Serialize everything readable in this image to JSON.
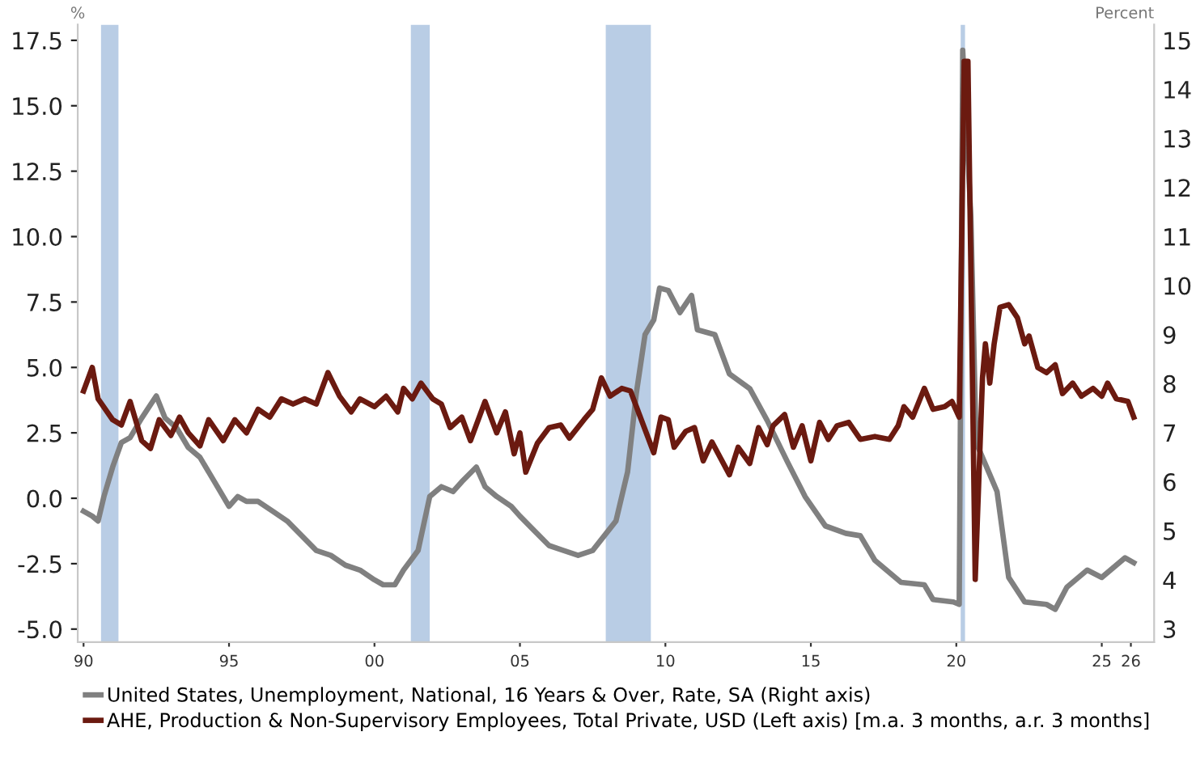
{
  "chart_data": {
    "type": "line",
    "ylabel": "%",
    "y2label": "Percent",
    "xlim": [
      1989.8,
      2026.8
    ],
    "xticks": [
      {
        "value": 1990,
        "label": "90"
      },
      {
        "value": 1995,
        "label": "95"
      },
      {
        "value": 2000,
        "label": "00"
      },
      {
        "value": 2005,
        "label": "05"
      },
      {
        "value": 2010,
        "label": "10"
      },
      {
        "value": 2015,
        "label": "15"
      },
      {
        "value": 2020,
        "label": "20"
      },
      {
        "value": 2025,
        "label": "25"
      },
      {
        "value": 2026,
        "label": "26"
      }
    ],
    "ylim": [
      -5.5,
      18.1
    ],
    "yticks": [
      {
        "value": -5,
        "label": "-5.0"
      },
      {
        "value": -2.5,
        "label": "-2.5"
      },
      {
        "value": 0,
        "label": "0.0"
      },
      {
        "value": 2.5,
        "label": "2.5"
      },
      {
        "value": 5,
        "label": "5.0"
      },
      {
        "value": 7.5,
        "label": "7.5"
      },
      {
        "value": 10,
        "label": "10.0"
      },
      {
        "value": 12.5,
        "label": "12.5"
      },
      {
        "value": 15,
        "label": "15.0"
      },
      {
        "value": 17.5,
        "label": "17.5"
      }
    ],
    "y2lim": [
      2.73,
      15.32
    ],
    "y2ticks": [
      3,
      4,
      5,
      6,
      7,
      8,
      9,
      10,
      11,
      12,
      13,
      14,
      15
    ],
    "grid": false,
    "legend": "bottom",
    "marker": "none",
    "line_style": "solid",
    "bands": [
      {
        "axis": "x",
        "from": 1990.6,
        "to": 1991.2,
        "color": "#b9cde5"
      },
      {
        "axis": "x",
        "from": 2001.25,
        "to": 2001.9,
        "color": "#b9cde5"
      },
      {
        "axis": "x",
        "from": 2007.95,
        "to": 2009.5,
        "color": "#b9cde5"
      },
      {
        "axis": "x",
        "from": 2020.15,
        "to": 2020.3,
        "color": "#b9cde5"
      }
    ],
    "series": [
      {
        "name": "United States, Unemployment, National, 16 Years & Over, Rate, SA (Right axis)",
        "color": "#808080",
        "axis": "y2",
        "x": [
          1990.0,
          1990.3,
          1990.5,
          1990.7,
          1991.0,
          1991.3,
          1991.6,
          1992.0,
          1992.5,
          1992.8,
          1993.2,
          1993.6,
          1994.0,
          1994.5,
          1995.0,
          1995.3,
          1995.6,
          1996.0,
          1996.5,
          1997.0,
          1997.5,
          1998.0,
          1998.5,
          1999.0,
          1999.5,
          2000.0,
          2000.3,
          2000.7,
          2001.0,
          2001.5,
          2001.9,
          2002.3,
          2002.7,
          2003.0,
          2003.5,
          2003.8,
          2004.2,
          2004.7,
          2005.0,
          2005.5,
          2006.0,
          2006.5,
          2007.0,
          2007.5,
          2007.9,
          2008.3,
          2008.7,
          2009.0,
          2009.3,
          2009.6,
          2009.8,
          2010.1,
          2010.5,
          2010.9,
          2011.1,
          2011.7,
          2012.2,
          2012.9,
          2013.5,
          2014.2,
          2014.8,
          2015.5,
          2016.2,
          2016.7,
          2017.2,
          2018.1,
          2018.9,
          2019.2,
          2019.9,
          2020.1,
          2020.22,
          2020.5,
          2020.68,
          2021.15,
          2021.4,
          2021.8,
          2022.35,
          2023.1,
          2023.4,
          2023.8,
          2024.5,
          2025.0,
          2025.8,
          2026.1
        ],
        "values": [
          5.4,
          5.3,
          5.2,
          5.7,
          6.3,
          6.8,
          6.9,
          7.3,
          7.75,
          7.3,
          7.1,
          6.7,
          6.5,
          6.0,
          5.5,
          5.7,
          5.6,
          5.6,
          5.4,
          5.2,
          4.9,
          4.6,
          4.5,
          4.3,
          4.2,
          4.0,
          3.9,
          3.9,
          4.2,
          4.6,
          5.7,
          5.9,
          5.8,
          6.0,
          6.3,
          5.9,
          5.7,
          5.5,
          5.3,
          5.0,
          4.7,
          4.6,
          4.5,
          4.6,
          4.9,
          5.2,
          6.2,
          7.8,
          9.0,
          9.3,
          9.95,
          9.9,
          9.45,
          9.8,
          9.1,
          9.0,
          8.2,
          7.9,
          7.25,
          6.4,
          5.7,
          5.1,
          4.95,
          4.9,
          4.4,
          3.95,
          3.9,
          3.6,
          3.55,
          3.5,
          14.8,
          11.4,
          6.8,
          6.15,
          5.8,
          4.05,
          3.55,
          3.5,
          3.4,
          3.85,
          4.2,
          4.05,
          4.45,
          4.35
        ]
      },
      {
        "name": "AHE, Production & Non-Supervisory Employees, Total Private, USD (Left axis) [m.a. 3 months, a.r. 3 months]",
        "color": "#6b1a10",
        "axis": "y",
        "x": [
          1990.0,
          1990.3,
          1990.5,
          1991.0,
          1991.3,
          1991.6,
          1992.0,
          1992.3,
          1992.6,
          1993.0,
          1993.3,
          1993.6,
          1994.0,
          1994.3,
          1994.8,
          1995.2,
          1995.6,
          1996.0,
          1996.4,
          1996.8,
          1997.2,
          1997.6,
          1998.0,
          1998.4,
          1998.8,
          1999.2,
          1999.5,
          2000.0,
          2000.4,
          2000.8,
          2001.0,
          2001.3,
          2001.6,
          2002.0,
          2002.3,
          2002.6,
          2003.0,
          2003.3,
          2003.8,
          2004.2,
          2004.5,
          2004.8,
          2005.0,
          2005.2,
          2005.6,
          2006.0,
          2006.4,
          2006.7,
          2007.2,
          2007.5,
          2007.8,
          2008.1,
          2008.5,
          2008.8,
          2009.6,
          2009.85,
          2010.1,
          2010.3,
          2010.7,
          2011.0,
          2011.3,
          2011.6,
          2012.2,
          2012.5,
          2012.9,
          2013.2,
          2013.5,
          2013.7,
          2014.1,
          2014.4,
          2014.7,
          2015.0,
          2015.3,
          2015.6,
          2015.9,
          2016.3,
          2016.7,
          2017.2,
          2017.7,
          2018.0,
          2018.2,
          2018.5,
          2018.9,
          2019.2,
          2019.6,
          2019.85,
          2020.1,
          2020.27,
          2020.4,
          2020.65,
          2020.9,
          2021.0,
          2021.15,
          2021.3,
          2021.5,
          2021.8,
          2022.1,
          2022.35,
          2022.5,
          2022.8,
          2023.1,
          2023.4,
          2023.65,
          2024.0,
          2024.3,
          2024.7,
          2025.0,
          2025.2,
          2025.5,
          2025.9,
          2026.1
        ],
        "values": [
          4.1,
          5.0,
          3.8,
          3.0,
          2.8,
          3.7,
          2.2,
          1.9,
          3.0,
          2.4,
          3.1,
          2.5,
          2.0,
          3.0,
          2.2,
          3.0,
          2.5,
          3.4,
          3.1,
          3.8,
          3.6,
          3.8,
          3.6,
          4.8,
          3.9,
          3.3,
          3.8,
          3.5,
          3.9,
          3.3,
          4.2,
          3.8,
          4.4,
          3.8,
          3.6,
          2.7,
          3.1,
          2.2,
          3.7,
          2.5,
          3.3,
          1.7,
          2.5,
          1.0,
          2.1,
          2.7,
          2.8,
          2.3,
          3.0,
          3.4,
          4.6,
          3.9,
          4.2,
          4.1,
          1.74,
          3.1,
          3.0,
          1.95,
          2.56,
          2.7,
          1.43,
          2.15,
          0.9,
          1.95,
          1.33,
          2.7,
          2.05,
          2.77,
          3.2,
          1.95,
          2.77,
          1.43,
          2.9,
          2.25,
          2.77,
          2.9,
          2.25,
          2.36,
          2.25,
          2.77,
          3.5,
          3.1,
          4.2,
          3.4,
          3.5,
          3.7,
          3.1,
          16.7,
          16.7,
          -3.1,
          4.6,
          5.9,
          4.4,
          5.9,
          7.3,
          7.4,
          6.9,
          5.9,
          6.2,
          5.0,
          4.8,
          5.1,
          4.0,
          4.4,
          3.9,
          4.2,
          3.9,
          4.4,
          3.8,
          3.7,
          3.1
        ]
      }
    ]
  }
}
